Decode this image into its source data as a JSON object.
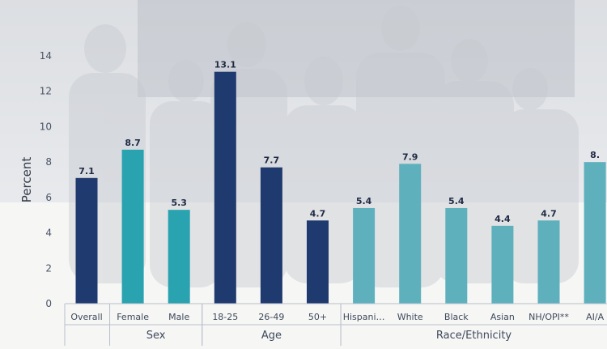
{
  "chart_data": {
    "type": "bar",
    "ylabel": "Percent",
    "ylim": [
      0,
      14
    ],
    "yticks": [
      0,
      2,
      4,
      6,
      8,
      10,
      12,
      14
    ],
    "grid": false,
    "legend": "none",
    "categories": [
      "Overall",
      "Female",
      "Male",
      "18-25",
      "26-49",
      "50+",
      "Hispani…",
      "White",
      "Black",
      "Asian",
      "NH/OPI**",
      "AI/A"
    ],
    "values": [
      7.1,
      8.7,
      5.3,
      13.1,
      7.7,
      4.7,
      5.4,
      7.9,
      5.4,
      4.4,
      4.7,
      8.0
    ],
    "value_labels": [
      "7.1",
      "8.7",
      "5.3",
      "13.1",
      "7.7",
      "4.7",
      "5.4",
      "7.9",
      "5.4",
      "4.4",
      "4.7",
      "8."
    ],
    "bar_colors": [
      "#1f3a6e",
      "#2aa3b0",
      "#2aa3b0",
      "#1f3a6e",
      "#1f3a6e",
      "#1f3a6e",
      "#5fb0bd",
      "#5fb0bd",
      "#5fb0bd",
      "#5fb0bd",
      "#5fb0bd",
      "#5fb0bd"
    ],
    "groups": [
      {
        "label": "Sex",
        "categories": [
          "Female",
          "Male"
        ]
      },
      {
        "label": "Age",
        "categories": [
          "18-25",
          "26-49",
          "50+"
        ]
      },
      {
        "label": "Race/Ethnicity",
        "categories": [
          "Hispani…",
          "White",
          "Black",
          "Asian",
          "NH/OPI**",
          "AI/A"
        ]
      }
    ]
  }
}
